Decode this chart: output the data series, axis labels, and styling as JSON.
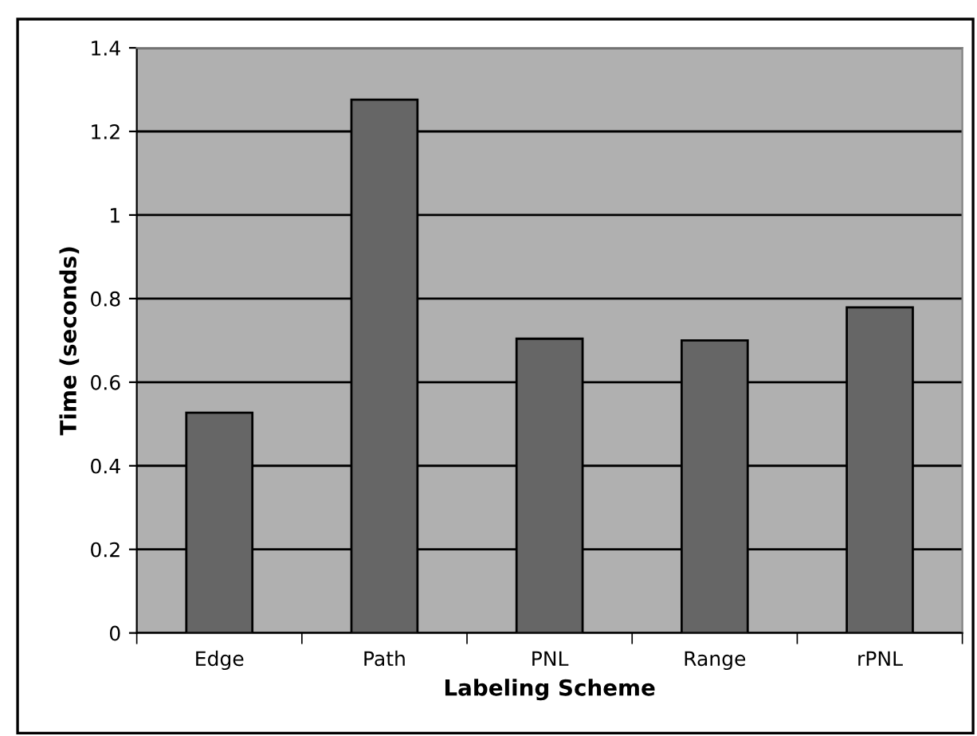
{
  "chart_data": {
    "type": "bar",
    "xlabel": "Labeling Scheme",
    "ylabel": "Time (seconds)",
    "categories": [
      "Edge",
      "Path",
      "PNL",
      "Range",
      "rPNL"
    ],
    "values": [
      0.527,
      1.276,
      0.704,
      0.7,
      0.779
    ],
    "color": "#666666",
    "ylim": [
      0,
      1.4
    ],
    "yticks": [
      0,
      0.2,
      0.4,
      0.6,
      0.8,
      1,
      1.2,
      1.4
    ],
    "grid": "y"
  }
}
